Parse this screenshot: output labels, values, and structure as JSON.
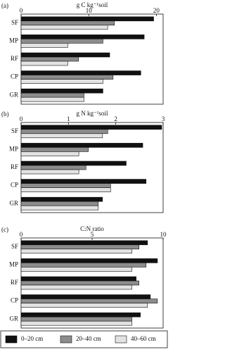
{
  "chart_data": [
    {
      "type": "bar",
      "orientation": "horizontal",
      "panel": "(a)",
      "title": "g C kg⁻¹soil",
      "categories": [
        "SF",
        "MP",
        "RF",
        "CP",
        "GR"
      ],
      "series": [
        {
          "name": "0–20 cm",
          "color": "#111111",
          "values": [
            19.6,
            18.2,
            13.1,
            17.7,
            12.1
          ]
        },
        {
          "name": "20–40 cm",
          "color": "#8c8c8c",
          "values": [
            13.8,
            12.1,
            8.5,
            13.6,
            9.3
          ]
        },
        {
          "name": "40–60 cm",
          "color": "#e2e2e2",
          "values": [
            12.8,
            6.9,
            6.9,
            12.1,
            9.3
          ]
        }
      ],
      "xlim": [
        0,
        21
      ],
      "xticks": [
        0,
        10,
        20
      ]
    },
    {
      "type": "bar",
      "orientation": "horizontal",
      "panel": "(b)",
      "title": "g N kg⁻¹soil",
      "categories": [
        "SF",
        "MP",
        "RF",
        "CP",
        "GR"
      ],
      "series": [
        {
          "color": "#111111",
          "values": [
            2.97,
            2.57,
            2.22,
            2.64,
            1.72
          ]
        },
        {
          "color": "#8c8c8c",
          "values": [
            1.83,
            1.42,
            1.37,
            1.89,
            1.63
          ]
        },
        {
          "color": "#e2e2e2",
          "values": [
            1.72,
            1.22,
            1.22,
            1.89,
            1.63
          ]
        }
      ],
      "xlim": [
        0,
        3
      ],
      "xticks": [
        0,
        1,
        2,
        3
      ]
    },
    {
      "type": "bar",
      "orientation": "horizontal",
      "panel": "(c)",
      "title": "C:N ratio",
      "categories": [
        "SF",
        "MP",
        "RF",
        "CP",
        "GR"
      ],
      "series": [
        {
          "color": "#111111",
          "values": [
            8.9,
            9.6,
            8.1,
            9.1,
            8.4
          ]
        },
        {
          "color": "#8c8c8c",
          "values": [
            8.3,
            8.8,
            8.3,
            9.6,
            7.8
          ]
        },
        {
          "color": "#e2e2e2",
          "values": [
            7.8,
            7.8,
            7.8,
            8.9,
            7.8
          ]
        }
      ],
      "xlim": [
        0,
        10
      ],
      "xticks": [
        0,
        5,
        10
      ]
    }
  ]
}
